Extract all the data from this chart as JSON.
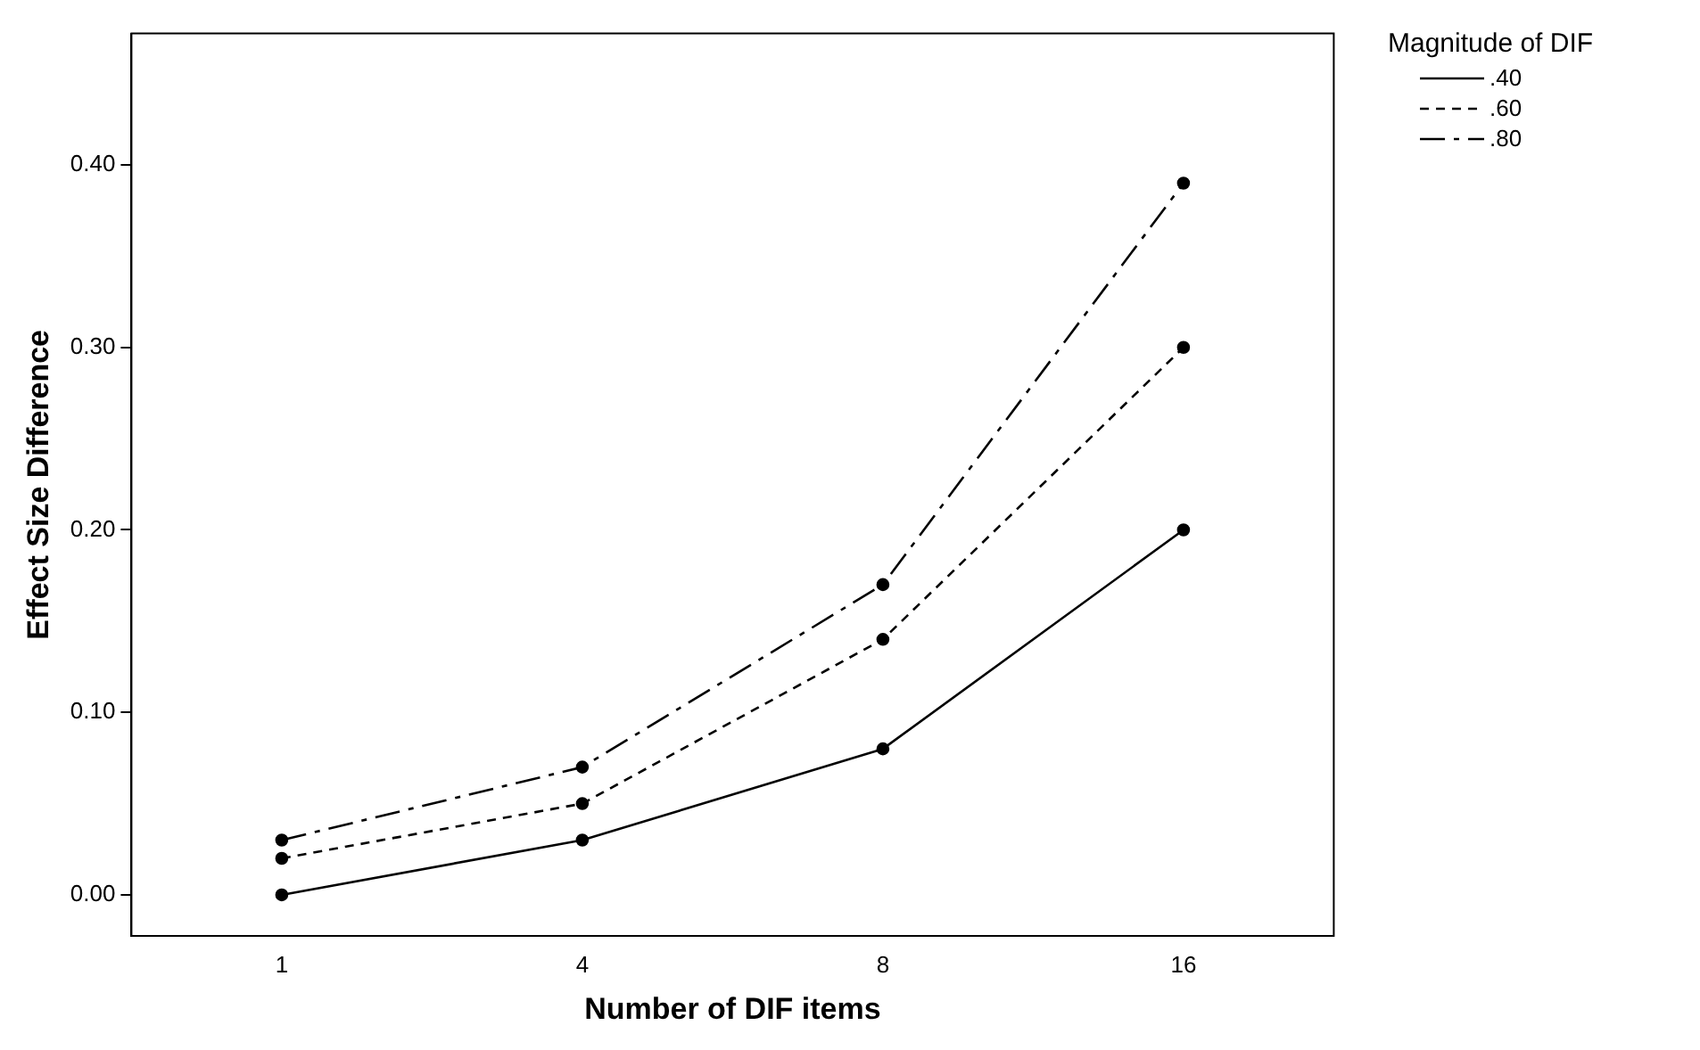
{
  "chart_data": {
    "type": "line",
    "xlabel": "Number of DIF items",
    "ylabel": "Effect Size Difference",
    "legend_title": "Magnitude of DIF",
    "categories": [
      "1",
      "4",
      "8",
      "16"
    ],
    "series": [
      {
        "name": ".40",
        "color": "#000000",
        "line_style": "solid",
        "values": [
          0.0,
          0.03,
          0.08,
          0.2
        ]
      },
      {
        "name": ".60",
        "color": "#000000",
        "line_style": "dashed",
        "values": [
          0.02,
          0.05,
          0.14,
          0.3
        ]
      },
      {
        "name": ".80",
        "color": "#000000",
        "line_style": "dashdot",
        "values": [
          0.03,
          0.07,
          0.17,
          0.39
        ]
      }
    ],
    "ylim": [
      -0.0225,
      0.472
    ],
    "yticks": [
      {
        "value": 0,
        "label": "0.00"
      },
      {
        "value": 0.1,
        "label": "0.10"
      },
      {
        "value": 0.2,
        "label": "0.20"
      },
      {
        "value": 0.3,
        "label": "0.30"
      },
      {
        "value": 0.4,
        "label": "0.40"
      }
    ],
    "grid": false,
    "legend": "top right",
    "marker": "circle"
  }
}
